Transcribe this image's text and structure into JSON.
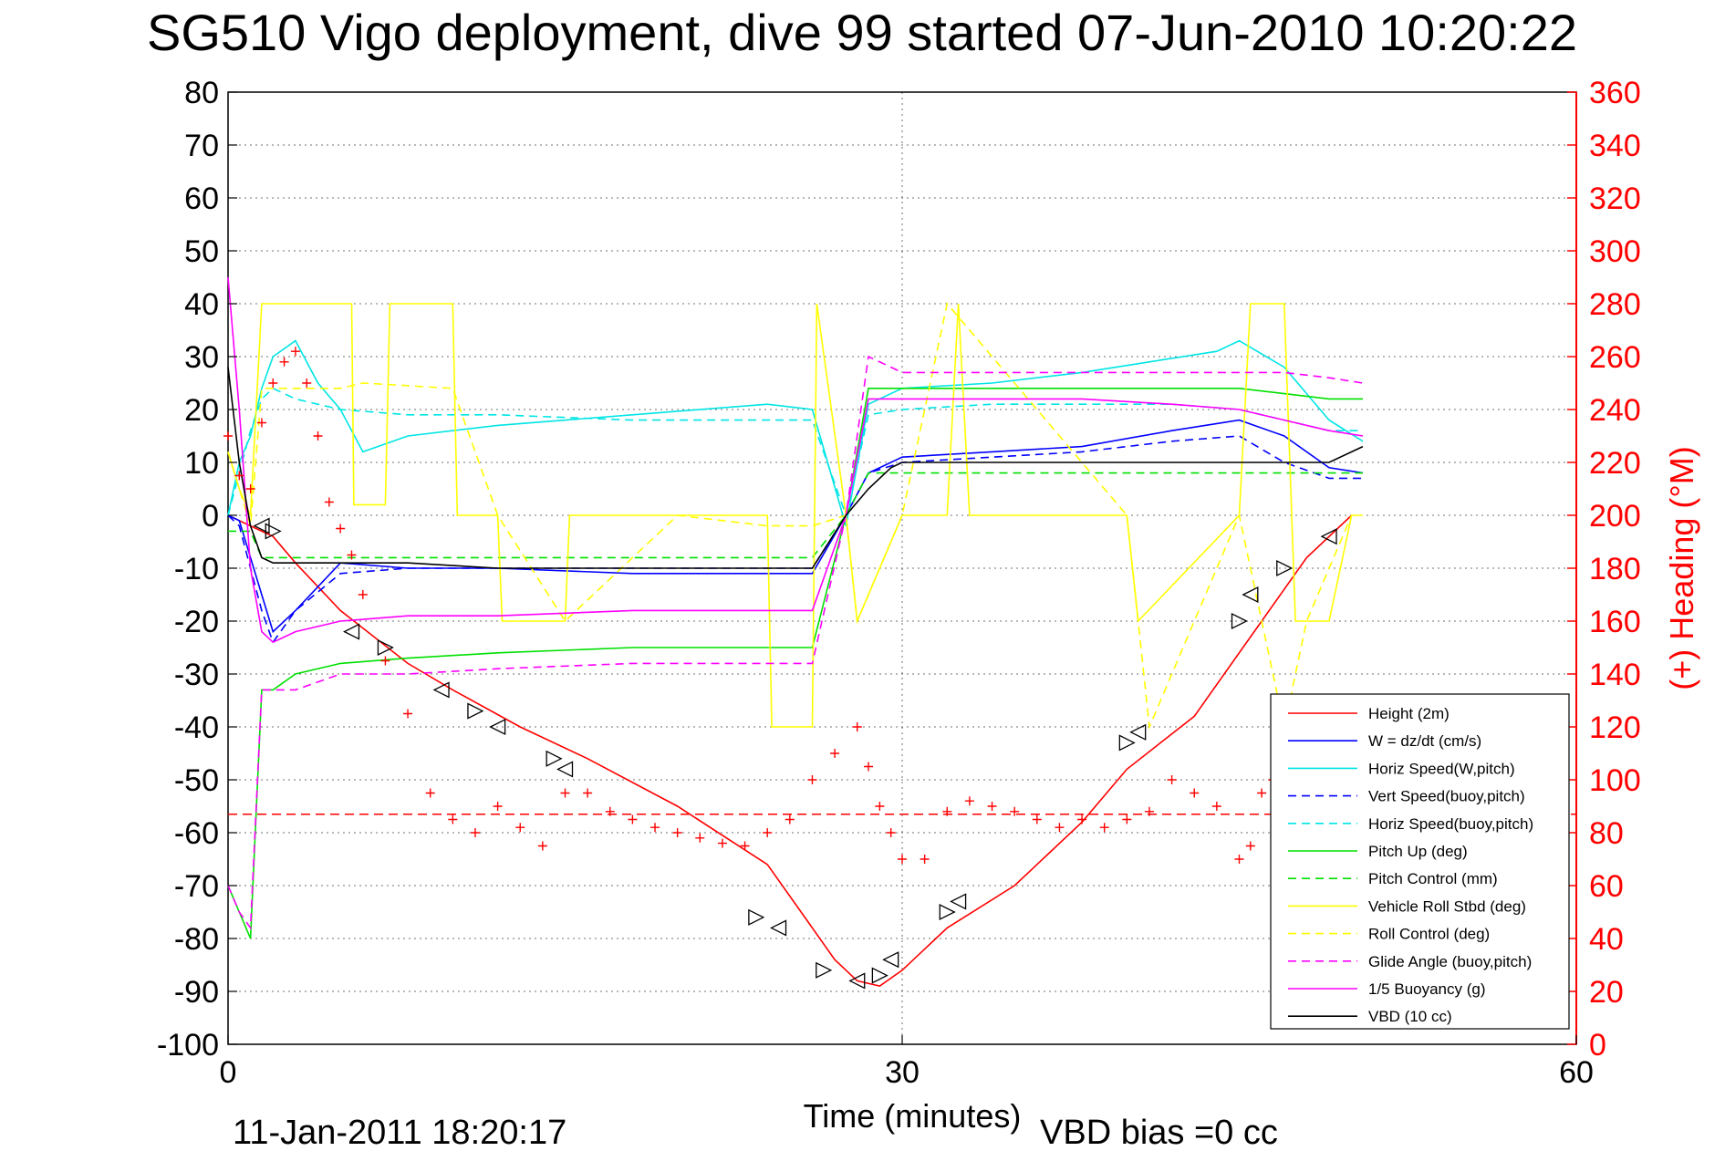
{
  "chart_data": {
    "type": "line",
    "title": "SG510 Vigo deployment, dive 99 started 07-Jun-2010 10:20:22",
    "xlabel": "Time (minutes)",
    "ylabel": "",
    "y2label": "(+) Heading (°M)",
    "xlim": [
      0,
      60
    ],
    "ylim": [
      -100,
      80
    ],
    "y2lim": [
      0,
      360
    ],
    "x_ticks": [
      "0",
      "30",
      "60"
    ],
    "y_ticks": [
      "80",
      "70",
      "60",
      "50",
      "40",
      "30",
      "20",
      "10",
      "0",
      "-10",
      "-20",
      "-30",
      "-40",
      "-50",
      "-60",
      "-70",
      "-80",
      "-90",
      "-100"
    ],
    "y2_ticks": [
      "360",
      "340",
      "320",
      "300",
      "280",
      "260",
      "240",
      "220",
      "200",
      "180",
      "160",
      "140",
      "120",
      "100",
      "80",
      "60",
      "40",
      "20",
      "0"
    ],
    "grid": "dotted at x=30 and every y tick",
    "legend_position": "bottom-right",
    "footer_left": "11-Jan-2011 18:20:17",
    "footer_right": "VBD bias =0 cc",
    "series": [
      {
        "name": "Height (2m)",
        "color": "#ff0000",
        "dash": "solid",
        "x": [
          0,
          0.5,
          1,
          1.5,
          2,
          3,
          5,
          8,
          10,
          13,
          16,
          20,
          24,
          26,
          27,
          28,
          29,
          30,
          32,
          35,
          38,
          40,
          43,
          46,
          48,
          50
        ],
        "y": [
          0,
          -1,
          -2,
          -3,
          -4,
          -9,
          -18,
          -28,
          -33,
          -40,
          -46,
          -55,
          -66,
          -78,
          -84,
          -88,
          -89,
          -86,
          -78,
          -70,
          -58,
          -48,
          -38,
          -20,
          -8,
          0
        ]
      },
      {
        "name": "W = dz/dt (cm/s)",
        "color": "#0000ff",
        "dash": "solid",
        "x": [
          0,
          0.5,
          1,
          1.5,
          2,
          3,
          5,
          8,
          12,
          18,
          24,
          26,
          27.5,
          28.5,
          30,
          34,
          38,
          42,
          45,
          47,
          49,
          50.5
        ],
        "y": [
          0,
          -1,
          -8,
          -15,
          -22,
          -18,
          -9,
          -10,
          -10,
          -11,
          -11,
          -11,
          0,
          8,
          11,
          12,
          13,
          16,
          18,
          15,
          9,
          8
        ]
      },
      {
        "name": "Horiz Speed(W,pitch)",
        "color": "#00e5e5",
        "dash": "solid",
        "x": [
          0,
          0.5,
          1,
          1.5,
          2,
          3,
          4,
          5,
          6,
          8,
          12,
          18,
          24,
          26,
          27.5,
          28.5,
          30,
          34,
          38,
          41,
          44,
          45,
          47,
          49,
          50.5
        ],
        "y": [
          0,
          10,
          15,
          24,
          30,
          33,
          25,
          20,
          12,
          15,
          17,
          19,
          21,
          20,
          -2,
          21,
          24,
          25,
          27,
          29,
          31,
          33,
          28,
          18,
          14
        ]
      },
      {
        "name": "Vert Speed(buoy,pitch)",
        "color": "#0000ff",
        "dash": "dashed",
        "x": [
          0,
          0.5,
          1,
          1.5,
          2,
          3,
          5,
          8,
          12,
          18,
          24,
          26,
          27.5,
          28.5,
          30,
          34,
          38,
          42,
          45,
          47,
          49,
          50.5
        ],
        "y": [
          0,
          -2,
          -10,
          -18,
          -24,
          -18,
          -11,
          -10,
          -10,
          -10,
          -10,
          -10,
          0,
          8,
          10,
          11,
          12,
          14,
          15,
          10,
          7,
          7
        ]
      },
      {
        "name": "Horiz Speed(buoy,pitch)",
        "color": "#00e5e5",
        "dash": "dashed",
        "x": [
          0,
          0.5,
          1,
          1.5,
          2,
          3,
          5,
          8,
          12,
          18,
          24,
          26,
          27.5,
          28.5,
          30,
          34,
          38,
          42,
          45,
          47,
          49,
          50.5
        ],
        "y": [
          0,
          8,
          16,
          22,
          24,
          22,
          20,
          19,
          19,
          18,
          18,
          18,
          0,
          19,
          20,
          21,
          21,
          21,
          20,
          18,
          16,
          16
        ]
      },
      {
        "name": "Pitch Up (deg)",
        "color": "#00e000",
        "dash": "solid",
        "x": [
          0,
          0.5,
          1,
          1.5,
          2,
          3,
          5,
          8,
          12,
          18,
          24,
          26,
          27.5,
          28.5,
          30,
          34,
          38,
          42,
          45,
          47,
          49,
          50.5
        ],
        "y": [
          -70,
          -75,
          -80,
          -33,
          -33,
          -30,
          -28,
          -27,
          -26,
          -25,
          -25,
          -25,
          0,
          24,
          24,
          24,
          24,
          24,
          24,
          23,
          22,
          22
        ]
      },
      {
        "name": "Pitch Control (mm)",
        "color": "#00e000",
        "dash": "dashed",
        "x": [
          0,
          1,
          1.5,
          3,
          10,
          20,
          26,
          27.5,
          28.5,
          30,
          40,
          45,
          50.5
        ],
        "y": [
          -3,
          -3,
          -8,
          -8,
          -8,
          -8,
          -8,
          0,
          8,
          8,
          8,
          8,
          8
        ]
      },
      {
        "name": "Vehicle Roll Stbd (deg)",
        "color": "#ffff00",
        "dash": "solid",
        "x": [
          0,
          0.5,
          1,
          1.5,
          2,
          5.5,
          5.6,
          7,
          7.2,
          10,
          10.2,
          12,
          12.2,
          15,
          15.2,
          24,
          24.2,
          26,
          26.2,
          27.5,
          28,
          30,
          32,
          32.5,
          33,
          40,
          40.5,
          45,
          45.5,
          47,
          47.5,
          49,
          50,
          50.5
        ],
        "y": [
          12,
          5,
          0,
          40,
          40,
          40,
          2,
          2,
          40,
          40,
          0,
          0,
          -20,
          -20,
          0,
          0,
          -40,
          -40,
          40,
          0,
          -20,
          0,
          0,
          40,
          0,
          0,
          -20,
          0,
          40,
          40,
          -20,
          -20,
          0,
          0
        ]
      },
      {
        "name": "Roll Control (deg)",
        "color": "#ffff00",
        "dash": "dashed",
        "x": [
          0,
          1,
          1.5,
          5,
          6,
          10,
          12,
          15,
          20,
          24,
          26,
          27.5,
          28,
          30,
          32,
          40,
          41,
          45,
          47,
          48,
          50
        ],
        "y": [
          12,
          -2,
          24,
          24,
          25,
          24,
          0,
          -20,
          0,
          -2,
          -2,
          0,
          -20,
          0,
          40,
          0,
          -40,
          0,
          -40,
          -20,
          0
        ]
      },
      {
        "name": "Glide Angle (buoy,pitch)",
        "color": "#ff00ff",
        "dash": "dashed",
        "x": [
          0,
          0.5,
          1,
          1.5,
          2,
          3,
          5,
          8,
          12,
          18,
          24,
          26,
          27.5,
          28.5,
          30,
          34,
          38,
          42,
          45,
          47,
          49,
          50.5
        ],
        "y": [
          -70,
          -75,
          -78,
          -33,
          -33,
          -33,
          -30,
          -30,
          -29,
          -28,
          -28,
          -28,
          0,
          30,
          27,
          27,
          27,
          27,
          27,
          27,
          26,
          25
        ]
      },
      {
        "name": "1/5 Buoyancy (g)",
        "color": "#ff00ff",
        "dash": "solid",
        "x": [
          0,
          0.5,
          1,
          1.5,
          2,
          3,
          5,
          8,
          12,
          18,
          24,
          26,
          27.5,
          28.5,
          30,
          34,
          38,
          42,
          45,
          47,
          49,
          50.5
        ],
        "y": [
          45,
          20,
          -10,
          -22,
          -24,
          -22,
          -20,
          -19,
          -19,
          -18,
          -18,
          -18,
          0,
          22,
          22,
          22,
          22,
          21,
          20,
          18,
          16,
          15
        ]
      },
      {
        "name": "VBD (10 cc)",
        "color": "#000000",
        "dash": "solid",
        "x": [
          0,
          0.5,
          1,
          1.5,
          2,
          3,
          8,
          12,
          18,
          24,
          26,
          27.5,
          28.5,
          29.5,
          30,
          34,
          38,
          42,
          45,
          47,
          49,
          50.5
        ],
        "y": [
          28,
          10,
          -2,
          -8,
          -9,
          -9,
          -9,
          -10,
          -10,
          -10,
          -10,
          0,
          5,
          9,
          10,
          10,
          10,
          10,
          10,
          10,
          10,
          13
        ]
      }
    ],
    "heading_series": {
      "axis": "right",
      "color": "#ff0000",
      "marker": "+",
      "x": [
        0,
        0.5,
        1,
        1.5,
        2,
        2.5,
        3,
        3.5,
        4,
        4.5,
        5,
        5.5,
        6,
        7,
        8,
        9,
        10,
        11,
        12,
        13,
        14,
        15,
        16,
        17,
        18,
        19,
        20,
        21,
        22,
        23,
        24,
        25,
        26,
        27,
        28,
        28.5,
        29,
        29.5,
        30,
        31,
        32,
        33,
        34,
        35,
        36,
        37,
        38,
        39,
        40,
        41,
        42,
        43,
        44,
        45,
        45.5,
        46,
        46.5
      ],
      "y": [
        230,
        215,
        210,
        235,
        250,
        258,
        262,
        250,
        230,
        205,
        195,
        185,
        170,
        145,
        125,
        95,
        85,
        80,
        90,
        82,
        75,
        95,
        95,
        88,
        85,
        82,
        80,
        78,
        76,
        75,
        80,
        85,
        100,
        110,
        120,
        105,
        90,
        80,
        70,
        70,
        88,
        92,
        90,
        88,
        85,
        82,
        85,
        82,
        85,
        88,
        100,
        95,
        90,
        70,
        75,
        95,
        100
      ]
    },
    "reference_line": {
      "axis": "right",
      "y": 87,
      "color": "#ff0000",
      "dash": "dashed"
    },
    "triangle_markers": {
      "color": "#000000",
      "x": [
        1.5,
        2,
        5.5,
        7,
        9.5,
        11,
        12,
        14.5,
        15,
        23.5,
        24.5,
        26.5,
        28,
        29,
        29.5,
        32,
        32.5,
        40,
        40.5,
        45,
        45.5,
        47,
        49
      ],
      "y": [
        -2,
        -3,
        -22,
        -25,
        -33,
        -37,
        -40,
        -46,
        -48,
        -76,
        -78,
        -86,
        -88,
        -87,
        -84,
        -75,
        -73,
        -43,
        -41,
        -20,
        -15,
        -10,
        -4
      ]
    }
  }
}
